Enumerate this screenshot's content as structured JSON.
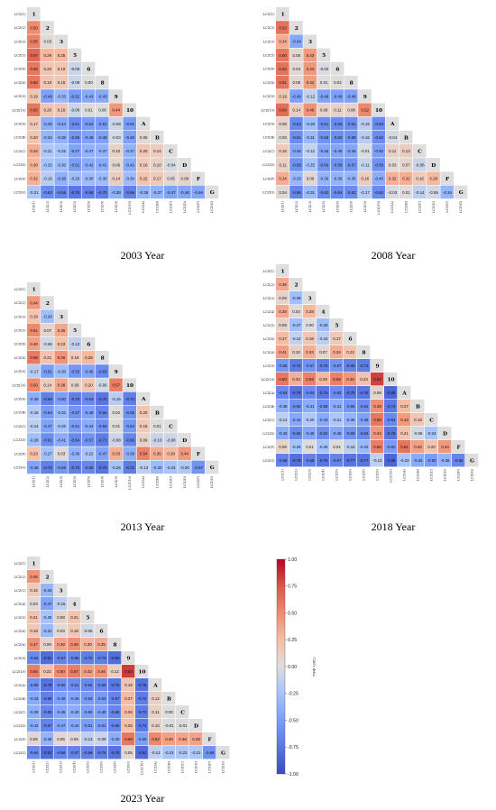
{
  "chart_data": {
    "type": "heatmap",
    "shape": "lower-triangular correlation matrix",
    "labels": [
      "LCZ(1)",
      "LCZ(2)",
      "LCZ(3)",
      "LCZ(4)",
      "LCZ(5)",
      "LCZ(6)",
      "LCZ(8)",
      "LCZ(9)",
      "LCZ(10)",
      "LCZ(A)",
      "LCZ(B)",
      "LCZ(C)",
      "LCZ(D)",
      "LCZ(F)",
      "LCZ(G)"
    ],
    "diag_labels": [
      "1",
      "2",
      "3",
      "4",
      "5",
      "6",
      "8",
      "9",
      "10",
      "A",
      "B",
      "C",
      "D",
      "F",
      "G"
    ],
    "colorbar": {
      "label": "Cliff's delta",
      "min": -1.0,
      "max": 1.0,
      "ticks": [
        "1.00",
        "0.75",
        "0.50",
        "0.25",
        "0.00",
        "-0.25",
        "-0.50",
        "-0.75",
        "-1.00"
      ],
      "colormap": "coolwarm",
      "low_color": "#3b4cc0",
      "mid_color": "#dddddd",
      "high_color": "#b40426"
    },
    "panels": [
      {
        "title": "2003 Year",
        "labels": [
          "LCZ(1)",
          "LCZ(2)",
          "LCZ(3)",
          "LCZ(5)",
          "LCZ(6)",
          "LCZ(8)",
          "LCZ(9)",
          "LCZ(10)",
          "LCZ(A)",
          "LCZ(B)",
          "LCZ(C)",
          "LCZ(D)",
          "LCZ(F)",
          "LCZ(G)"
        ],
        "diag_labels": [
          "1",
          "2",
          "3",
          "5",
          "6",
          "8",
          "9",
          "10",
          "A",
          "B",
          "C",
          "D",
          "F",
          "G"
        ],
        "rows": [
          [],
          [
            0.5
          ],
          [
            0.55,
            0.03
          ],
          [
            0.67,
            0.29,
            0.28
          ],
          [
            0.6,
            0.2,
            0.19,
            -0.09
          ],
          [
            0.6,
            0.19,
            0.18,
            -0.08,
            0.0
          ],
          [
            0.19,
            -0.49,
            -0.33,
            -0.52,
            -0.43,
            -0.43
          ],
          [
            0.6,
            0.2,
            0.19,
            -0.08,
            0.01,
            0.0,
            0.44
          ],
          [
            0.17,
            -0.39,
            -0.44,
            -0.61,
            -0.52,
            -0.52,
            -0.08,
            -0.52
          ],
          [
            0.2,
            -0.34,
            -0.38,
            -0.56,
            -0.48,
            -0.48,
            -0.03,
            -0.48,
            0.05
          ],
          [
            0.34,
            -0.21,
            -0.25,
            -0.47,
            -0.37,
            -0.37,
            0.1,
            -0.37,
            0.2,
            0.14
          ],
          [
            0.3,
            -0.25,
            -0.3,
            -0.51,
            -0.42,
            -0.41,
            0.06,
            -0.42,
            0.16,
            0.1,
            -0.04
          ],
          [
            0.32,
            -0.16,
            -0.38,
            -0.29,
            -0.3,
            -0.3,
            0.14,
            -0.3,
            0.22,
            0.17,
            0.05,
            0.09
          ],
          [
            -0.21,
            -0.63,
            -0.66,
            -0.75,
            -0.68,
            -0.7,
            -0.38,
            -0.69,
            -0.35,
            -0.37,
            -0.47,
            -0.46,
            -0.46
          ]
        ]
      },
      {
        "title": "2008 Year",
        "labels": [
          "LCZ(1)",
          "LCZ(2)",
          "LCZ(3)",
          "LCZ(5)",
          "LCZ(6)",
          "LCZ(8)",
          "LCZ(9)",
          "LCZ(10)",
          "LCZ(A)",
          "LCZ(B)",
          "LCZ(C)",
          "LCZ(D)",
          "LCZ(F)",
          "LCZ(G)"
        ],
        "diag_labels": [
          "1",
          "2",
          "3",
          "5",
          "6",
          "8",
          "9",
          "10",
          "A",
          "B",
          "C",
          "D",
          "F",
          "G"
        ],
        "rows": [
          [],
          [
            0.62
          ],
          [
            0.34,
            -0.44
          ],
          [
            0.6,
            0.05,
            0.43
          ],
          [
            0.62,
            0.04,
            0.44,
            -0.02
          ],
          [
            0.61,
            0.05,
            0.42,
            0.01,
            0.02
          ],
          [
            0.19,
            -0.49,
            -0.12,
            -0.48,
            -0.49,
            -0.48
          ],
          [
            0.64,
            0.14,
            0.46,
            0.09,
            0.11,
            0.08,
            0.52
          ],
          [
            0.08,
            -0.64,
            -0.29,
            -0.61,
            -0.63,
            -0.61,
            -0.15,
            -0.63
          ],
          [
            0.03,
            -0.61,
            -0.31,
            -0.58,
            -0.6,
            -0.59,
            -0.16,
            -0.62,
            -0.04
          ],
          [
            0.16,
            -0.45,
            -0.12,
            -0.45,
            -0.46,
            -0.46,
            -0.01,
            -0.5,
            0.11,
            0.13
          ],
          [
            0.11,
            -0.59,
            -0.25,
            -0.56,
            -0.58,
            -0.57,
            -0.11,
            -0.59,
            0.03,
            0.07,
            -0.08
          ],
          [
            0.34,
            -0.33,
            0.06,
            -0.36,
            -0.36,
            -0.35,
            0.16,
            -0.4,
            0.32,
            0.32,
            0.16,
            0.28
          ],
          [
            0.04,
            -0.66,
            -0.31,
            -0.62,
            -0.64,
            -0.62,
            -0.17,
            -0.64,
            -0.03,
            0.01,
            -0.14,
            -0.06,
            -0.34
          ]
        ]
      },
      {
        "title": "2013 Year",
        "labels": [
          "LCZ(1)",
          "LCZ(2)",
          "LCZ(3)",
          "LCZ(5)",
          "LCZ(6)",
          "LCZ(8)",
          "LCZ(9)",
          "LCZ(10)",
          "LCZ(A)",
          "LCZ(B)",
          "LCZ(C)",
          "LCZ(D)",
          "LCZ(F)",
          "LCZ(G)"
        ],
        "diag_labels": [
          "1",
          "2",
          "3",
          "5",
          "6",
          "8",
          "9",
          "10",
          "A",
          "B",
          "C",
          "D",
          "F",
          "G"
        ],
        "rows": [
          [],
          [
            0.44
          ],
          [
            0.19,
            -0.28
          ],
          [
            0.51,
            0.07,
            0.36
          ],
          [
            0.4,
            -0.06,
            0.23,
            -0.13
          ],
          [
            0.58,
            0.21,
            0.46,
            0.16,
            0.28
          ],
          [
            -0.17,
            -0.51,
            -0.3,
            -0.55,
            -0.46,
            -0.63
          ],
          [
            0.5,
            0.14,
            0.38,
            0.09,
            0.2,
            -0.06,
            0.57
          ],
          [
            -0.39,
            -0.69,
            -0.5,
            -0.7,
            -0.63,
            -0.76,
            -0.16,
            -0.7
          ],
          [
            -0.18,
            -0.54,
            -0.32,
            -0.57,
            -0.48,
            -0.65,
            0.02,
            -0.58,
            0.2
          ],
          [
            -0.14,
            -0.47,
            -0.26,
            -0.51,
            -0.42,
            -0.59,
            0.01,
            -0.54,
            0.16,
            0.01
          ],
          [
            -0.28,
            -0.61,
            -0.41,
            -0.64,
            -0.57,
            -0.71,
            -0.08,
            -0.65,
            0.09,
            -0.1,
            -0.08
          ],
          [
            0.23,
            -0.27,
            0.03,
            -0.36,
            -0.22,
            -0.47,
            0.33,
            -0.39,
            0.54,
            0.35,
            0.28,
            0.44
          ],
          [
            -0.46,
            -0.7,
            -0.55,
            -0.7,
            -0.65,
            -0.76,
            -0.25,
            -0.72,
            -0.13,
            -0.3,
            -0.24,
            -0.2,
            -0.57
          ]
        ]
      },
      {
        "title": "2018 Year",
        "labels": [
          "LCZ(1)",
          "LCZ(2)",
          "LCZ(3)",
          "LCZ(4)",
          "LCZ(5)",
          "LCZ(6)",
          "LCZ(8)",
          "LCZ(9)",
          "LCZ(10)",
          "LCZ(A)",
          "LCZ(B)",
          "LCZ(C)",
          "LCZ(D)",
          "LCZ(F)",
          "LCZ(G)"
        ],
        "diag_labels": [
          "1",
          "2",
          "3",
          "4",
          "5",
          "6",
          "8",
          "9",
          "10",
          "A",
          "B",
          "C",
          "D",
          "F",
          "G"
        ],
        "rows": [
          [],
          [
            0.36
          ],
          [
            0.09,
            -0.28
          ],
          [
            0.36,
            0.03,
            0.28
          ],
          [
            0.09,
            -0.27,
            0.0,
            -0.29
          ],
          [
            0.27,
            -0.12,
            0.18,
            -0.15,
            0.17
          ],
          [
            0.41,
            0.1,
            0.34,
            0.07,
            0.34,
            0.22
          ],
          [
            -0.56,
            -0.72,
            -0.57,
            -0.7,
            -0.57,
            -0.69,
            -0.72
          ],
          [
            0.6,
            0.33,
            0.55,
            0.29,
            0.55,
            0.45,
            0.23,
            0.82
          ],
          [
            -0.64,
            -0.78,
            -0.63,
            -0.76,
            -0.63,
            -0.76,
            -0.76,
            0.08,
            -0.85
          ],
          [
            -0.38,
            -0.6,
            -0.41,
            -0.59,
            -0.41,
            -0.55,
            -0.61,
            0.48,
            -0.74,
            0.27
          ],
          [
            -0.14,
            -0.44,
            -0.2,
            -0.43,
            -0.21,
            -0.36,
            -0.48,
            0.6,
            -0.64,
            0.43,
            0.19
          ],
          [
            -0.42,
            -0.64,
            -0.45,
            -0.62,
            -0.45,
            -0.59,
            -0.64,
            0.44,
            -0.76,
            0.21,
            -0.06,
            -0.24
          ],
          [
            0.09,
            -0.25,
            0.01,
            -0.26,
            0.01,
            -0.15,
            -0.32,
            0.56,
            -0.52,
            0.61,
            0.4,
            0.2,
            0.44
          ],
          [
            -0.68,
            -0.79,
            -0.68,
            -0.76,
            -0.67,
            -0.77,
            -0.77,
            -0.13,
            -0.85,
            -0.23,
            -0.42,
            -0.52,
            -0.36,
            -0.66
          ]
        ]
      },
      {
        "title": "2023 Year",
        "labels": [
          "LCZ(1)",
          "LCZ(2)",
          "LCZ(3)",
          "LCZ(4)",
          "LCZ(5)",
          "LCZ(6)",
          "LCZ(8)",
          "LCZ(9)",
          "LCZ(10)",
          "LCZ(A)",
          "LCZ(B)",
          "LCZ(C)",
          "LCZ(D)",
          "LCZ(F)",
          "LCZ(G)"
        ],
        "diag_labels": [
          "1",
          "2",
          "3",
          "4",
          "5",
          "6",
          "8",
          "9",
          "10",
          "A",
          "B",
          "C",
          "D",
          "F",
          "G"
        ],
        "rows": [
          [],
          [
            0.46
          ],
          [
            0.15,
            -0.34
          ],
          [
            0.03,
            -0.47,
            -0.15
          ],
          [
            0.21,
            -0.25,
            0.08,
            0.21
          ],
          [
            0.18,
            -0.31,
            0.03,
            0.18,
            -0.05
          ],
          [
            0.47,
            0.09,
            0.39,
            0.48,
            0.3,
            0.35
          ],
          [
            -0.64,
            -0.81,
            -0.67,
            -0.66,
            -0.7,
            -0.7,
            -0.8
          ],
          [
            0.56,
            0.22,
            0.5,
            0.57,
            0.42,
            0.46,
            0.12,
            0.83
          ],
          [
            -0.59,
            -0.78,
            -0.6,
            -0.61,
            -0.64,
            -0.65,
            -0.75,
            0.19,
            -0.78
          ],
          [
            -0.43,
            -0.69,
            -0.49,
            -0.46,
            -0.53,
            -0.53,
            -0.67,
            0.27,
            -0.72,
            0.12
          ],
          [
            -0.39,
            -0.66,
            -0.45,
            -0.4,
            -0.5,
            -0.49,
            -0.66,
            0.26,
            -0.72,
            0.11,
            0.0
          ],
          [
            -0.42,
            -0.67,
            -0.47,
            -0.44,
            -0.51,
            -0.51,
            -0.66,
            0.25,
            -0.74,
            0.1,
            -0.01,
            -0.01
          ],
          [
            0.06,
            -0.36,
            0.06,
            0.05,
            -0.13,
            -0.09,
            -0.4,
            0.59,
            -0.5,
            0.52,
            0.4,
            0.38,
            0.39
          ],
          [
            -0.64,
            -0.81,
            -0.66,
            -0.67,
            -0.69,
            -0.7,
            -0.78,
            0.05,
            -0.81,
            -0.13,
            -0.23,
            -0.22,
            -0.21,
            -0.58
          ]
        ]
      }
    ]
  }
}
